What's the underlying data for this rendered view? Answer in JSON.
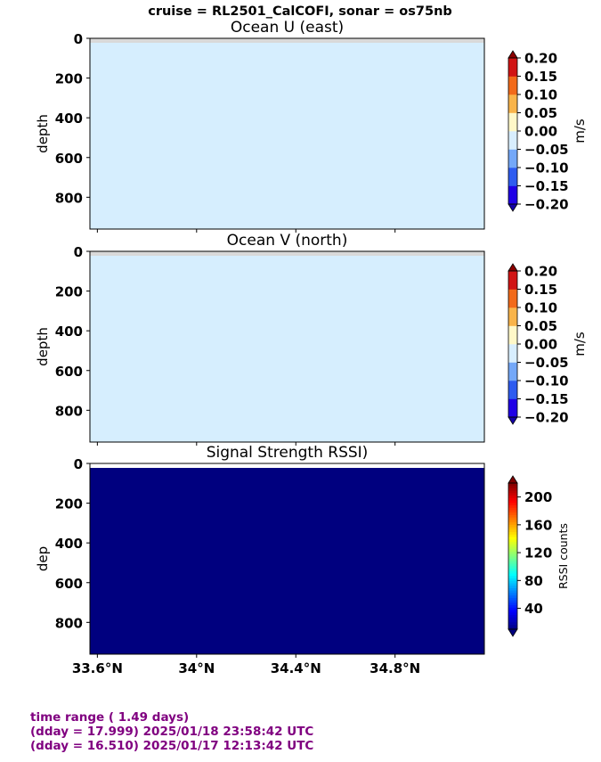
{
  "suptitle": "cruise = RL2501_CalCOFI,  sonar = os75nb",
  "footer": {
    "line1": "time range ( 1.49 days)",
    "line2": "(dday = 17.999) 2025/01/18 23:58:42 UTC",
    "line3": "(dday = 16.510) 2025/01/17 12:13:42 UTC"
  },
  "colors": {
    "u_fill": "#d6eefe",
    "v_fill": "#d6eefe",
    "rssi_fill": "#00007f",
    "nodata_band": "#d9d9d9",
    "footer_text": "#800080"
  },
  "chart_data": [
    {
      "type": "heatmap",
      "title": "Ocean U (east)",
      "ylabel": "depth",
      "yticks": [
        "0",
        "200",
        "400",
        "600",
        "800"
      ],
      "ytick_values": [
        0,
        200,
        400,
        600,
        800
      ],
      "ylim": [
        960,
        0
      ],
      "xlim": [
        33.57,
        35.16
      ],
      "xtick_values": [
        33.6,
        34.0,
        34.4,
        34.8
      ],
      "colorbar": {
        "label": "m/s",
        "ticks": [
          "0.20",
          "0.15",
          "0.10",
          "0.05",
          "0.00",
          "−0.05",
          "−0.10",
          "−0.15",
          "−0.20"
        ],
        "tick_values": [
          0.2,
          0.15,
          0.1,
          0.05,
          0.0,
          -0.05,
          -0.1,
          -0.15,
          -0.2
        ],
        "range": [
          -0.2,
          0.2
        ],
        "colormap": "discrete jet-like (blue to red), 8 bands"
      }
    },
    {
      "type": "heatmap",
      "title": "Ocean V (north)",
      "ylabel": "depth",
      "yticks": [
        "0",
        "200",
        "400",
        "600",
        "800"
      ],
      "ytick_values": [
        0,
        200,
        400,
        600,
        800
      ],
      "ylim": [
        960,
        0
      ],
      "xlim": [
        33.57,
        35.16
      ],
      "xtick_values": [
        33.6,
        34.0,
        34.4,
        34.8
      ],
      "colorbar": {
        "label": "m/s",
        "ticks": [
          "0.20",
          "0.15",
          "0.10",
          "0.05",
          "0.00",
          "−0.05",
          "−0.10",
          "−0.15",
          "−0.20"
        ],
        "tick_values": [
          0.2,
          0.15,
          0.1,
          0.05,
          0.0,
          -0.05,
          -0.1,
          -0.15,
          -0.2
        ],
        "range": [
          -0.2,
          0.2
        ],
        "colormap": "discrete jet-like (blue to red), 8 bands"
      }
    },
    {
      "type": "heatmap",
      "title": "Signal Strength RSSI)",
      "ylabel": "dep",
      "yticks": [
        "0",
        "200",
        "400",
        "600",
        "800"
      ],
      "ytick_values": [
        0,
        200,
        400,
        600,
        800
      ],
      "ylim": [
        960,
        0
      ],
      "xlim": [
        33.57,
        35.16
      ],
      "xtick_values": [
        33.6,
        34.0,
        34.4,
        34.8
      ],
      "xticks": [
        "33.6°N",
        "34°N",
        "34.4°N",
        "34.8°N"
      ],
      "colorbar": {
        "label": "RSSI counts",
        "ticks": [
          "200",
          "160",
          "120",
          "80",
          "40"
        ],
        "tick_values": [
          200,
          160,
          120,
          80,
          40
        ],
        "range": [
          10,
          220
        ],
        "colormap": "jet"
      }
    }
  ]
}
